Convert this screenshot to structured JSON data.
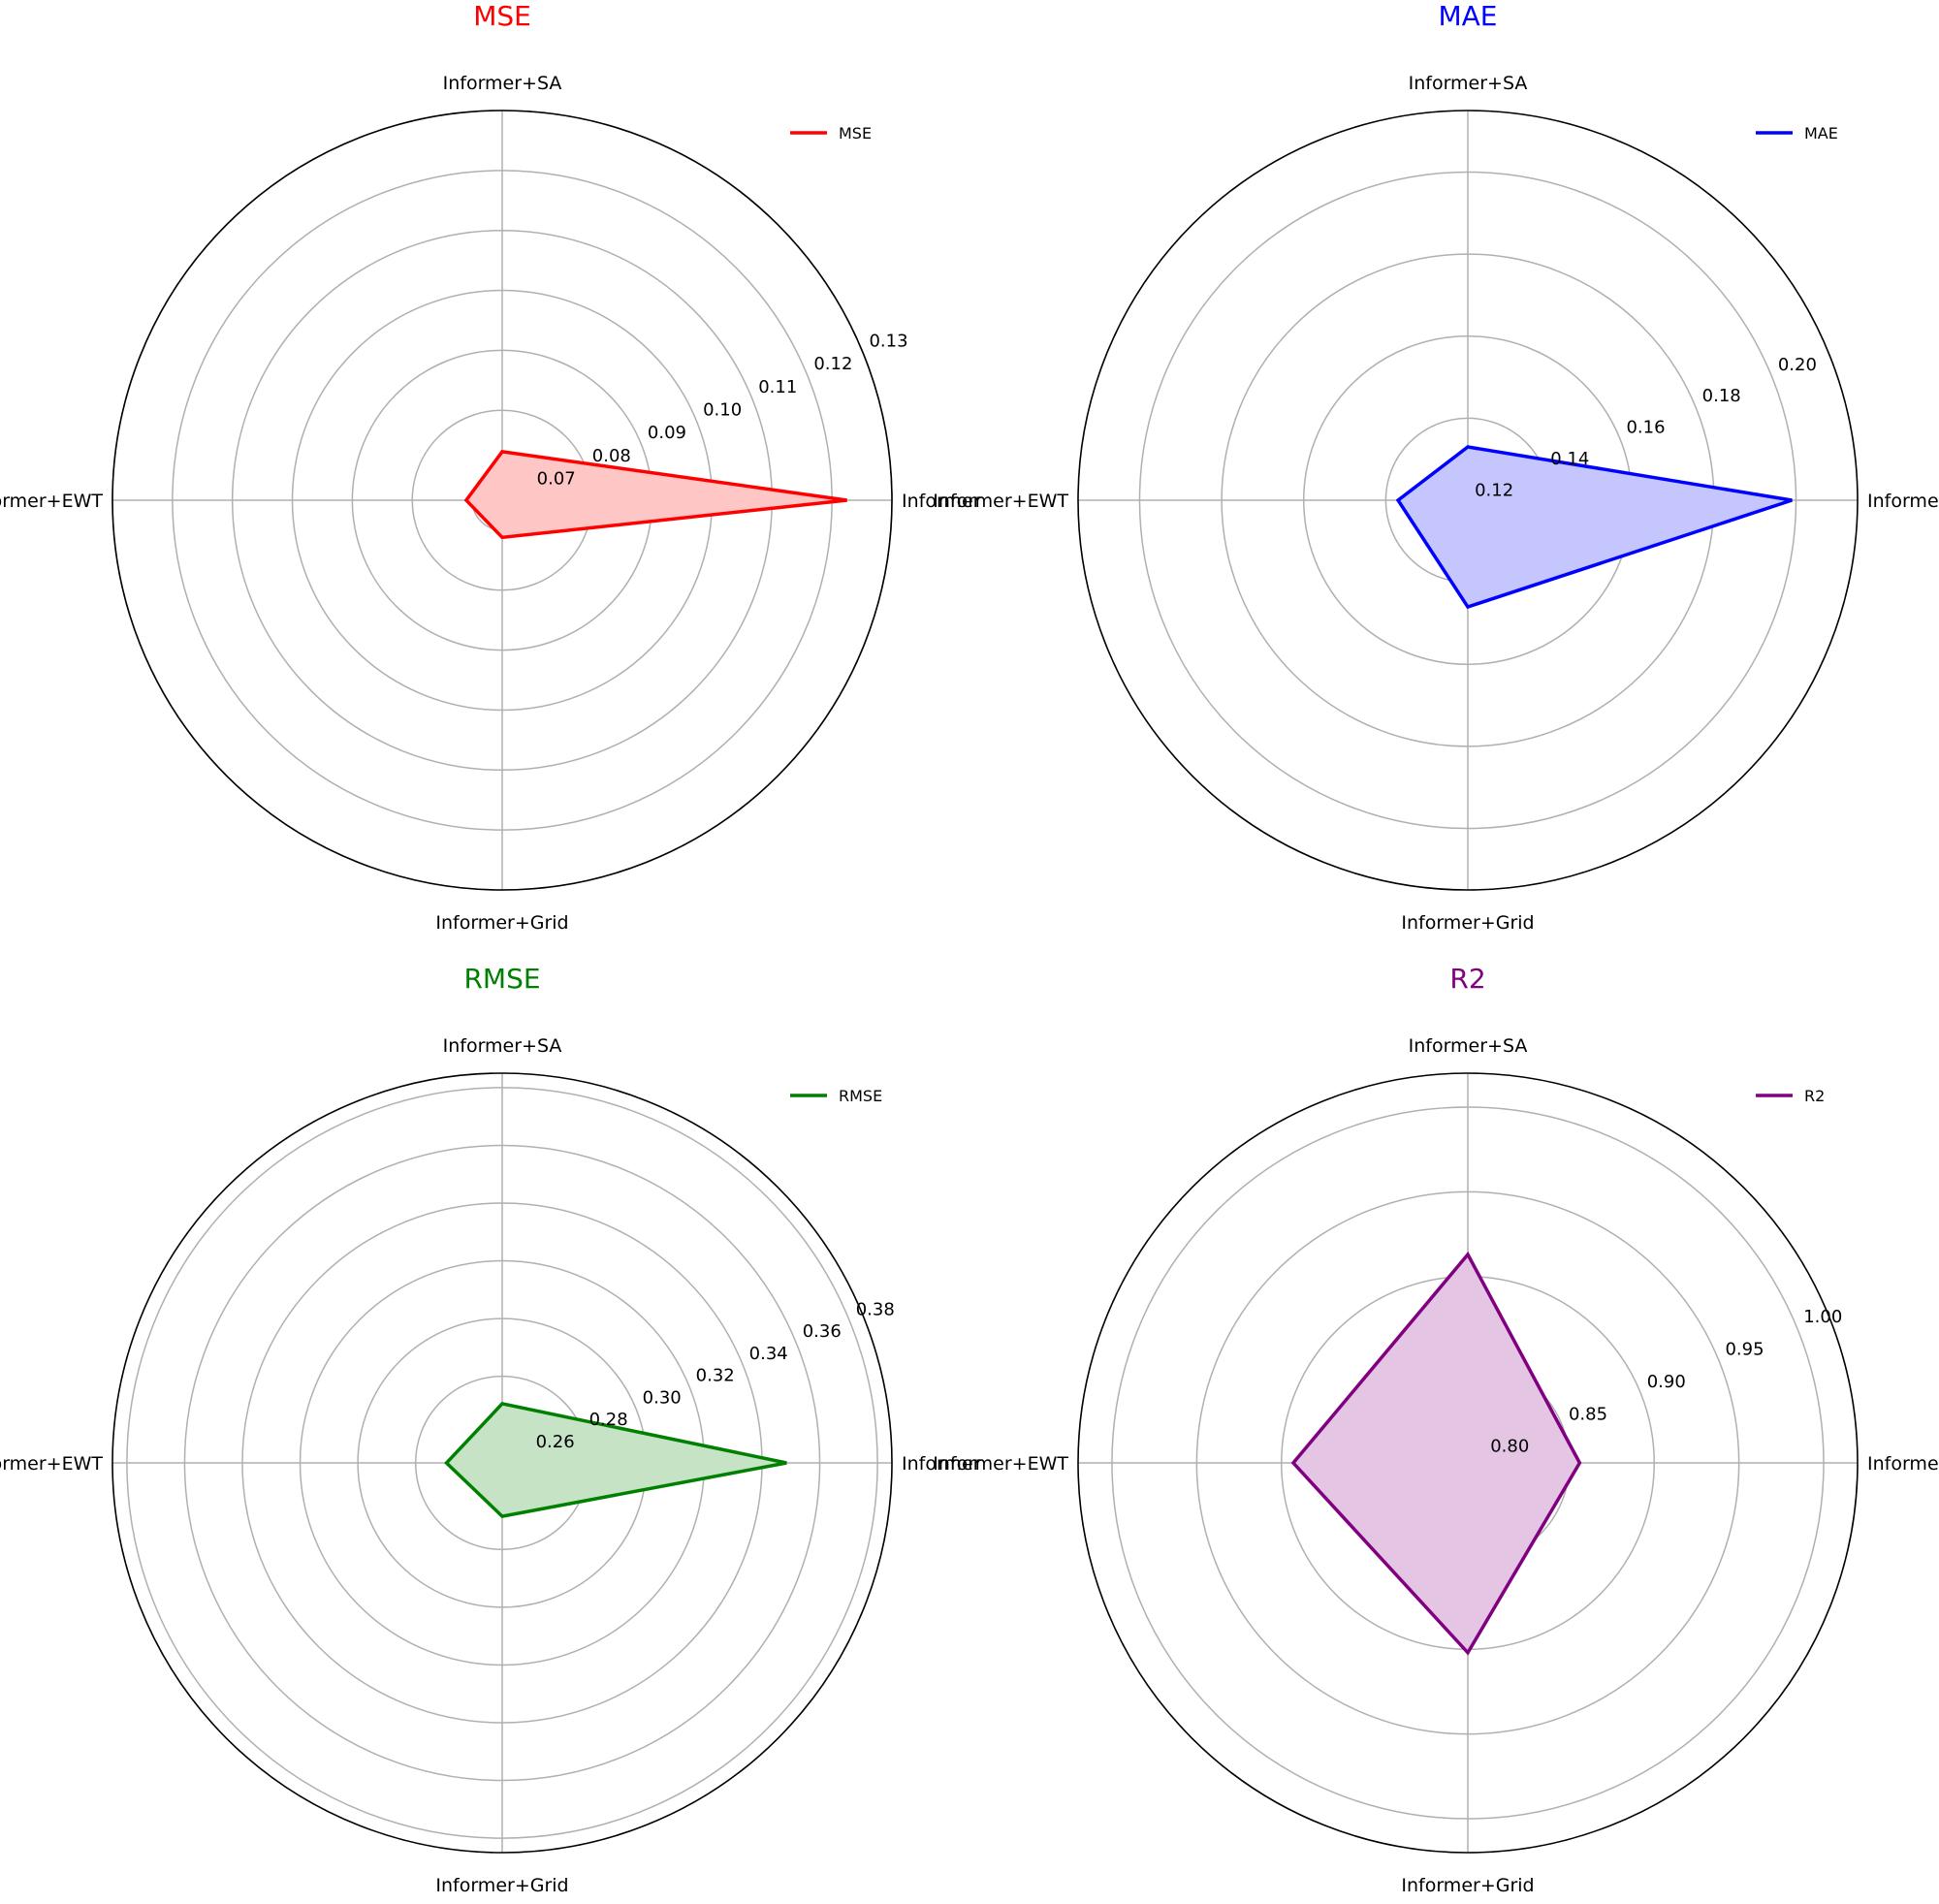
{
  "chart_data": [
    {
      "type": "radar",
      "title": "MSE",
      "color": "#ff0000",
      "fill": "#ffc6c6",
      "categories": [
        "Informer",
        "Informer+SA",
        "Informer+EWT",
        "Informer+Grid"
      ],
      "values": [
        0.1225,
        0.0731,
        0.071,
        0.0712
      ],
      "rlim": [
        0.065,
        0.13
      ],
      "ticks": [
        0.07,
        0.08,
        0.09,
        0.1,
        0.11,
        0.12,
        0.13
      ],
      "tick_labels": [
        "0.07",
        "0.08",
        "0.09",
        "0.10",
        "0.11",
        "0.12",
        "0.13"
      ],
      "legend": "MSE"
    },
    {
      "type": "radar",
      "title": "MAE",
      "color": "#0000ff",
      "fill": "#c6c6ff",
      "categories": [
        "Informer",
        "Informer+SA",
        "Informer+EWT",
        "Informer+Grid"
      ],
      "values": [
        0.199,
        0.133,
        0.137,
        0.146
      ],
      "rlim": [
        0.12,
        0.215
      ],
      "ticks": [
        0.12,
        0.14,
        0.16,
        0.18,
        0.2
      ],
      "tick_labels": [
        "0.12",
        "0.14",
        "0.16",
        "0.18",
        "0.20"
      ],
      "legend": "MAE"
    },
    {
      "type": "radar",
      "title": "RMSE",
      "color": "#008000",
      "fill": "#c6e3c6",
      "categories": [
        "Informer",
        "Informer+SA",
        "Informer+EWT",
        "Informer+Grid"
      ],
      "values": [
        0.3485,
        0.2705,
        0.2693,
        0.2685
      ],
      "rlim": [
        0.25,
        0.385
      ],
      "ticks": [
        0.26,
        0.28,
        0.3,
        0.32,
        0.34,
        0.36,
        0.38
      ],
      "tick_labels": [
        "0.26",
        "0.28",
        "0.30",
        "0.32",
        "0.34",
        "0.36",
        "0.38"
      ],
      "legend": "RMSE"
    },
    {
      "type": "radar",
      "title": "R2",
      "color": "#800080",
      "fill": "#e4c6e4",
      "categories": [
        "Informer",
        "Informer+SA",
        "Informer+EWT",
        "Informer+Grid"
      ],
      "values": [
        0.856,
        0.913,
        0.893,
        0.902
      ],
      "rlim": [
        0.79,
        1.02
      ],
      "ticks": [
        0.8,
        0.85,
        0.9,
        0.95,
        1.0
      ],
      "tick_labels": [
        "0.80",
        "0.85",
        "0.90",
        "0.95",
        "1.00"
      ],
      "legend": "R2"
    }
  ]
}
